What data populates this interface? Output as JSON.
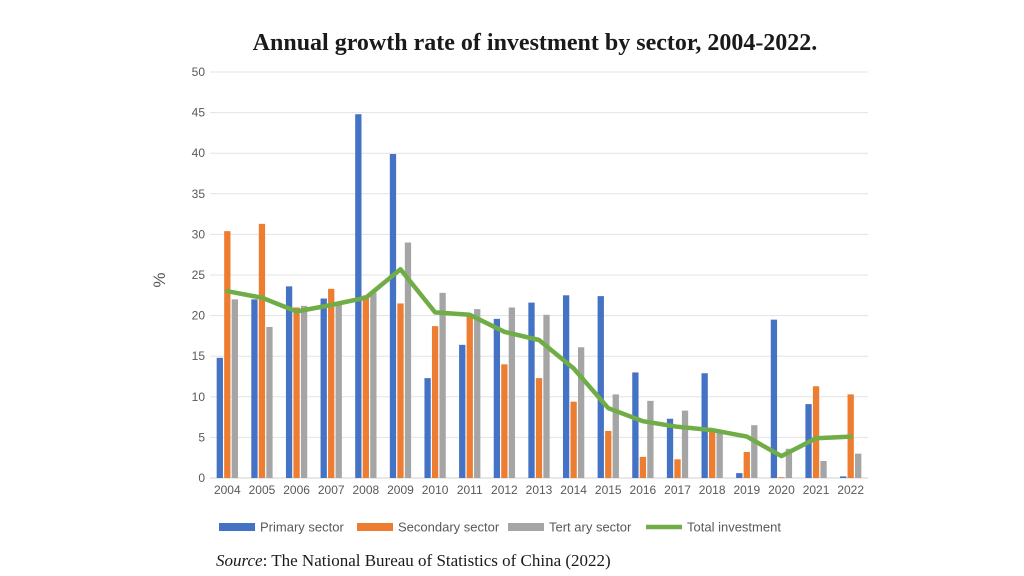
{
  "page": {
    "source_label": "Source",
    "source_text": ": The National Bureau of Statistics of China (2022)"
  },
  "chart_data": {
    "type": "bar",
    "title": "Annual growth rate of investment by sector, 2004-2022.",
    "xlabel": "",
    "ylabel": "%",
    "ylim": [
      0,
      50
    ],
    "yticks": [
      0,
      5,
      10,
      15,
      20,
      25,
      30,
      35,
      40,
      45,
      50
    ],
    "grid": true,
    "legend_position": "bottom",
    "categories": [
      "2004",
      "2005",
      "2006",
      "2007",
      "2008",
      "2009",
      "2010",
      "2011",
      "2012",
      "2013",
      "2014",
      "2015",
      "2016",
      "2017",
      "2018",
      "2019",
      "2020",
      "2021",
      "2022"
    ],
    "series": [
      {
        "name": "Primary sector",
        "kind": "bar",
        "color": "#4472C4",
        "values": [
          14.8,
          22.0,
          23.6,
          22.1,
          44.8,
          39.9,
          12.3,
          16.4,
          19.6,
          21.6,
          22.5,
          22.4,
          13.0,
          7.3,
          12.9,
          0.6,
          19.5,
          9.1,
          0.2
        ]
      },
      {
        "name": "Secondary sector",
        "kind": "bar",
        "color": "#ED7D31",
        "values": [
          30.4,
          31.3,
          21.0,
          23.3,
          22.5,
          21.5,
          18.7,
          20.0,
          14.0,
          12.3,
          9.4,
          5.8,
          2.6,
          2.3,
          5.8,
          3.2,
          0.1,
          11.3,
          10.3
        ]
      },
      {
        "name": "Tert ary sector",
        "kind": "bar",
        "color": "#A5A5A5",
        "values": [
          22.0,
          18.6,
          21.2,
          21.4,
          23.0,
          29.0,
          22.8,
          20.8,
          21.0,
          20.1,
          16.1,
          10.3,
          9.5,
          8.3,
          5.7,
          6.5,
          3.6,
          2.1,
          3.0
        ]
      },
      {
        "name": "Total investment",
        "kind": "line",
        "color": "#70AD47",
        "values": [
          23.0,
          22.2,
          20.5,
          21.3,
          22.2,
          25.7,
          20.4,
          20.1,
          18.0,
          17.0,
          13.5,
          8.6,
          7.0,
          6.3,
          5.9,
          5.1,
          2.7,
          4.9,
          5.1
        ]
      }
    ]
  }
}
